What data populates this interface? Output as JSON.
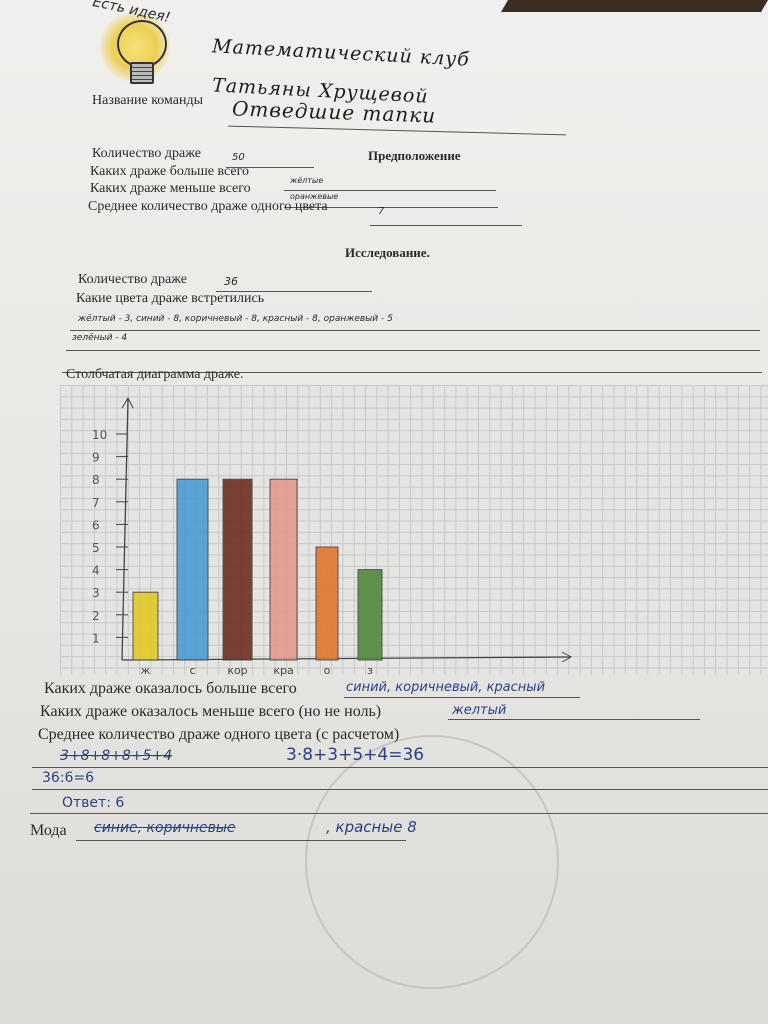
{
  "header": {
    "logo_text": "Есть идея!",
    "title_line1": "Математический клуб",
    "title_line2": "Татьяны Хрущевой"
  },
  "team": {
    "label": "Название команды",
    "value": "Отведшие тапки"
  },
  "hypothesis": {
    "heading": "Предположение",
    "count_label": "Количество драже",
    "count_value": "50",
    "most_label": "Каких драже больше всего",
    "most_value": "жёлтые",
    "least_label": "Каких драже меньше всего",
    "least_value": "оранжевые",
    "avg_label": "Среднее количество драже одного цвета",
    "avg_value": "7"
  },
  "research": {
    "heading": "Исследование.",
    "count_label": "Количество драже",
    "count_value": "36",
    "colors_label": "Какие цвета драже встретились",
    "colors_line1": "жёлтый - 3, синий - 8, коричневый - 8, красный - 8, оранжевый - 5",
    "colors_line2": "зелёный - 4",
    "chart_label": "Столбчатая диаграмма драже."
  },
  "chart_data": {
    "type": "bar",
    "categories": [
      "ж",
      "с",
      "кор",
      "кра",
      "о",
      "з"
    ],
    "values": [
      3,
      8,
      8,
      8,
      5,
      4
    ],
    "bar_colors": [
      "#e2c926",
      "#4a9bd2",
      "#6e2f22",
      "#e39a8c",
      "#e0762d",
      "#4f8a3a"
    ],
    "yticks": [
      "1",
      "2",
      "3",
      "4",
      "5",
      "6",
      "7",
      "8",
      "9",
      "10"
    ],
    "ylim": [
      0,
      10
    ],
    "grid": true
  },
  "results": {
    "most_label": "Каких драже оказалось больше всего",
    "most_value": "синий, коричневый, красный",
    "least_label": "Каких драже оказалось меньше всего (но не ноль)",
    "least_value": "желтый",
    "avg_label": "Среднее количество драже одного цвета (с расчетом)",
    "calc_crossed": "3+8+8+8+5+4",
    "calc_line1": "3·8+3+5+4=36",
    "calc_line2": "36:6=6",
    "answer": "Ответ: 6",
    "mode_label": "Мода",
    "mode_crossed": "синие, коричневые",
    "mode_value": ", красные 8"
  }
}
